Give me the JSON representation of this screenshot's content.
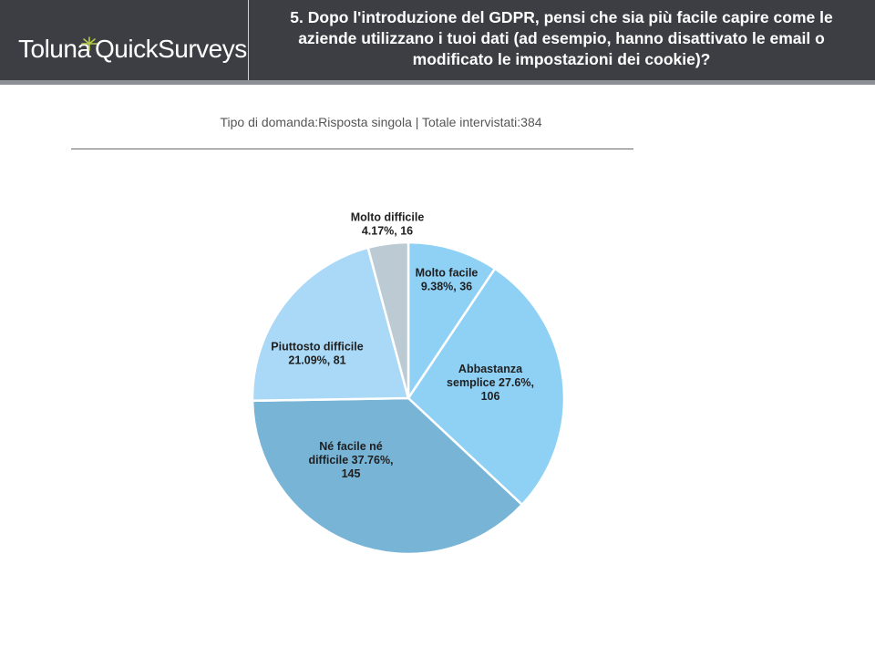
{
  "header": {
    "logo_part1": "Toluna",
    "logo_part2": "QuickSurveys",
    "question": "5. Dopo l'introduzione del GDPR, pensi che sia più facile capire come le aziende utilizzano i tuoi dati (ad esempio, hanno disattivato le email o modificato le impostazioni dei cookie)?"
  },
  "subtitle": "Tipo di domanda:Risposta singola | Totale intervistati:384",
  "chart_data": {
    "type": "pie",
    "slices": [
      {
        "label": "Molto facile",
        "percent": 9.38,
        "count": 36,
        "color": "#8fd1f5",
        "text": [
          "Molto facile",
          "9.38%, 36"
        ]
      },
      {
        "label": "Abbastanza semplice",
        "percent": 27.6,
        "count": 106,
        "color": "#8fd1f5",
        "text": [
          "Abbastanza",
          "semplice 27.6%,",
          "106"
        ]
      },
      {
        "label": "Né facile né difficile",
        "percent": 37.76,
        "count": 145,
        "color": "#77b4d6",
        "text": [
          "Né facile né",
          "difficile 37.76%,",
          "145"
        ]
      },
      {
        "label": "Piuttosto difficile",
        "percent": 21.09,
        "count": 81,
        "color": "#a9d9f6",
        "text": [
          "Piuttosto difficile",
          "21.09%, 81"
        ]
      },
      {
        "label": "Molto difficile",
        "percent": 4.17,
        "count": 16,
        "color": "#bccad3",
        "text": [
          "Molto difficile",
          "4.17%, 16"
        ]
      }
    ]
  }
}
